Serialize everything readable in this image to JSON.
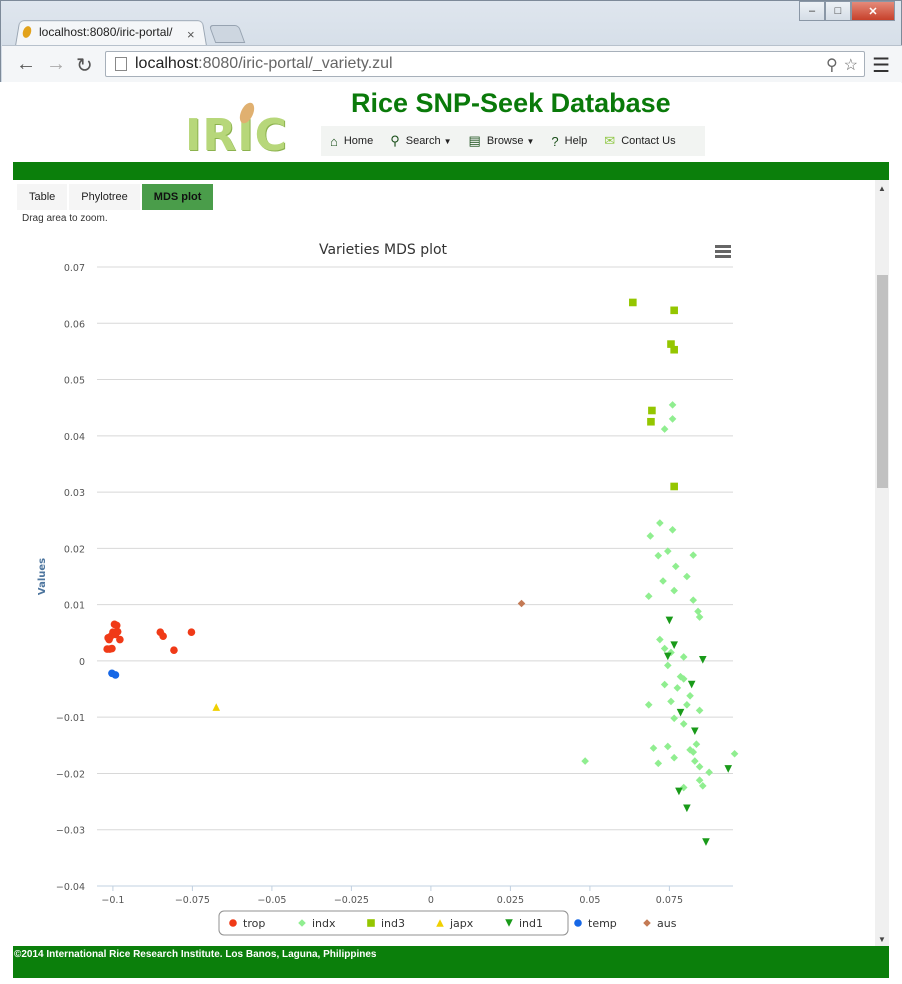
{
  "browser": {
    "tab_title": "localhost:8080/iric-portal/",
    "url_host": "localhost",
    "url_rest": ":8080/iric-portal/_variety.zul"
  },
  "header": {
    "logo_text": "IRIC",
    "site_title": "Rice SNP-Seek Database",
    "menu": [
      {
        "label": "Home",
        "icon": "home-icon"
      },
      {
        "label": "Search",
        "icon": "search-icon"
      },
      {
        "label": "Browse",
        "icon": "browse-icon"
      },
      {
        "label": "Help",
        "icon": "help-icon"
      },
      {
        "label": "Contact Us",
        "icon": "mail-icon"
      }
    ]
  },
  "tabs": [
    {
      "label": "Table",
      "active": false
    },
    {
      "label": "Phylotree",
      "active": false
    },
    {
      "label": "MDS plot",
      "active": true
    }
  ],
  "hint": "Drag area to zoom.",
  "footer": "©2014 International Rice Research Institute. Los Banos, Laguna, Philippines",
  "chart_data": {
    "type": "scatter",
    "title": "Varieties MDS plot",
    "xlabel": "",
    "ylabel": "Values",
    "xlim": [
      -0.105,
      0.095
    ],
    "ylim": [
      -0.04,
      0.07
    ],
    "x_ticks": [
      "−0.1",
      "−0.075",
      "−0.05",
      "−0.025",
      "0",
      "0.025",
      "0.05",
      "0.075"
    ],
    "y_ticks": [
      "0.07",
      "0.06",
      "0.05",
      "0.04",
      "0.03",
      "0.02",
      "0.01",
      "0",
      "−0.01",
      "−0.02",
      "−0.03",
      "−0.04"
    ],
    "grid": true,
    "legend_position": "bottom",
    "series": [
      {
        "name": "trop",
        "color": "#f03a17",
        "marker": "circle",
        "points": [
          [
            -0.1015,
            0.0041
          ],
          [
            -0.1008,
            0.0043
          ],
          [
            -0.1012,
            0.0038
          ],
          [
            -0.1,
            0.0051
          ],
          [
            -0.0995,
            0.0065
          ],
          [
            -0.0988,
            0.0063
          ],
          [
            -0.0992,
            0.0047
          ],
          [
            -0.0985,
            0.0052
          ],
          [
            -0.0978,
            0.0038
          ],
          [
            -0.101,
            0.0021
          ],
          [
            -0.1003,
            0.0022
          ],
          [
            -0.1018,
            0.0021
          ],
          [
            -0.0851,
            0.0051
          ],
          [
            -0.0842,
            0.0044
          ],
          [
            -0.0808,
            0.0019
          ],
          [
            -0.0753,
            0.0051
          ]
        ]
      },
      {
        "name": "indx",
        "color": "#90ee90",
        "marker": "diamond",
        "points": [
          [
            0.076,
            0.0455
          ],
          [
            0.076,
            0.043
          ],
          [
            0.0735,
            0.0412
          ],
          [
            0.072,
            0.0245
          ],
          [
            0.076,
            0.0233
          ],
          [
            0.069,
            0.0222
          ],
          [
            0.0745,
            0.0195
          ],
          [
            0.0715,
            0.0187
          ],
          [
            0.0825,
            0.0188
          ],
          [
            0.077,
            0.0168
          ],
          [
            0.0805,
            0.015
          ],
          [
            0.073,
            0.0142
          ],
          [
            0.0765,
            0.0125
          ],
          [
            0.0685,
            0.0115
          ],
          [
            0.0825,
            0.0108
          ],
          [
            0.084,
            0.0088
          ],
          [
            0.0845,
            0.0078
          ],
          [
            0.072,
            0.0038
          ],
          [
            0.0735,
            0.0022
          ],
          [
            0.0755,
            0.0015
          ],
          [
            0.0795,
            0.0007
          ],
          [
            0.0745,
            -0.0008
          ],
          [
            0.0785,
            -0.0028
          ],
          [
            0.0795,
            -0.0032
          ],
          [
            0.0735,
            -0.0042
          ],
          [
            0.0775,
            -0.0048
          ],
          [
            0.0815,
            -0.0062
          ],
          [
            0.0755,
            -0.0072
          ],
          [
            0.0685,
            -0.0078
          ],
          [
            0.0805,
            -0.0078
          ],
          [
            0.0845,
            -0.0088
          ],
          [
            0.0765,
            -0.0102
          ],
          [
            0.0795,
            -0.0112
          ],
          [
            0.0745,
            -0.0152
          ],
          [
            0.07,
            -0.0155
          ],
          [
            0.0835,
            -0.0148
          ],
          [
            0.0815,
            -0.0158
          ],
          [
            0.0825,
            -0.0162
          ],
          [
            0.0765,
            -0.0172
          ],
          [
            0.0715,
            -0.0182
          ],
          [
            0.083,
            -0.0178
          ],
          [
            0.0845,
            -0.0188
          ],
          [
            0.0485,
            -0.0178
          ],
          [
            0.0955,
            -0.0165
          ],
          [
            0.0875,
            -0.0198
          ],
          [
            0.0795,
            -0.0225
          ],
          [
            0.0845,
            -0.0212
          ],
          [
            0.0855,
            -0.0222
          ]
        ]
      },
      {
        "name": "ind3",
        "color": "#94c600",
        "marker": "square",
        "points": [
          [
            0.0635,
            0.0637
          ],
          [
            0.0765,
            0.0623
          ],
          [
            0.0755,
            0.0563
          ],
          [
            0.0765,
            0.0553
          ],
          [
            0.0695,
            0.0445
          ],
          [
            0.0692,
            0.0425
          ],
          [
            0.0765,
            0.031
          ]
        ]
      },
      {
        "name": "japx",
        "color": "#f0d000",
        "marker": "triangle",
        "points": [
          [
            -0.0675,
            -0.0082
          ]
        ]
      },
      {
        "name": "ind1",
        "color": "#199a19",
        "marker": "triangle-down",
        "points": [
          [
            0.075,
            0.0072
          ],
          [
            0.0765,
            0.0028
          ],
          [
            0.0745,
            0.0008
          ],
          [
            0.0855,
            0.0002
          ],
          [
            0.082,
            -0.0042
          ],
          [
            0.0785,
            -0.0092
          ],
          [
            0.083,
            -0.0125
          ],
          [
            0.078,
            -0.0232
          ],
          [
            0.0805,
            -0.0262
          ],
          [
            0.0935,
            -0.0192
          ],
          [
            0.0865,
            -0.0322
          ]
        ]
      },
      {
        "name": "temp",
        "color": "#1667e6",
        "marker": "circle",
        "points": [
          [
            -0.1003,
            -0.0022
          ],
          [
            -0.0992,
            -0.0025
          ]
        ]
      },
      {
        "name": "aus",
        "color": "#c47a54",
        "marker": "diamond",
        "points": [
          [
            0.0285,
            0.0102
          ]
        ]
      }
    ]
  }
}
